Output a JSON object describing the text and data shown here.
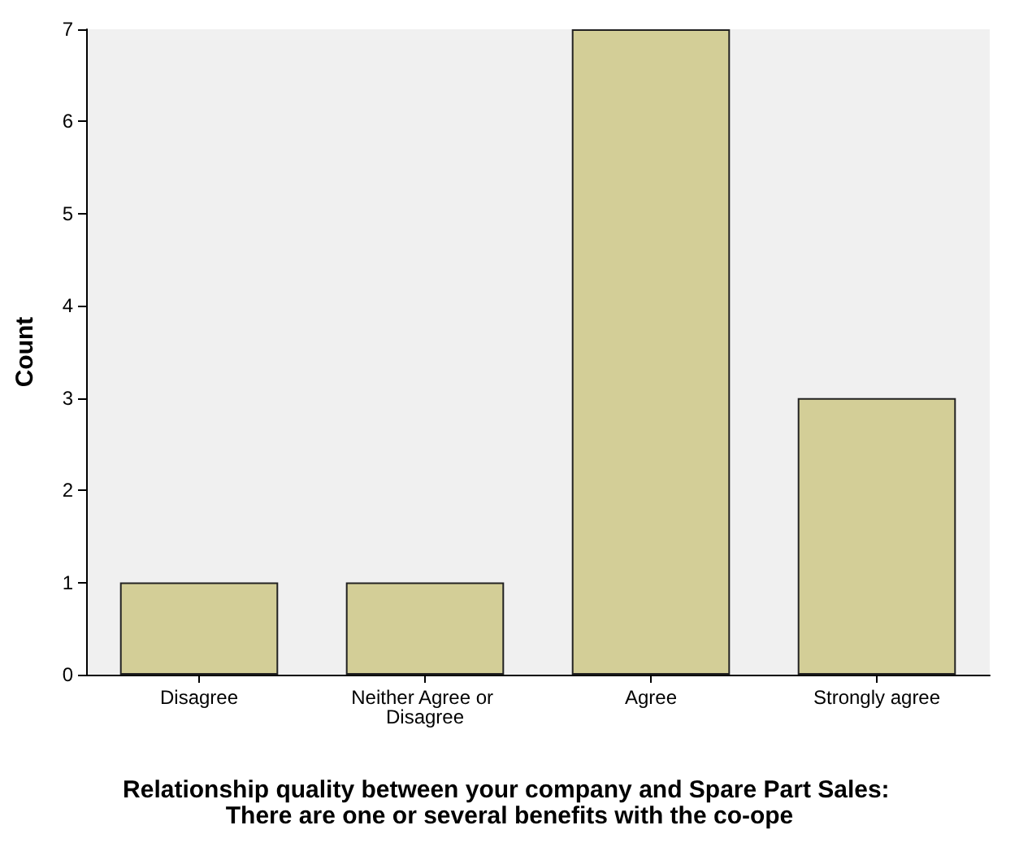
{
  "chart_data": {
    "type": "bar",
    "categories": [
      "Disagree",
      "Neither Agree or Disagree",
      "Agree",
      "Strongly agree"
    ],
    "values": [
      1,
      1,
      7,
      3
    ],
    "color": "#d3ce97",
    "ylim": [
      0,
      7
    ],
    "yticks": [
      0,
      1,
      2,
      3,
      4,
      5,
      6,
      7
    ],
    "ylabel": "Count",
    "xlabel": "Relationship quality between your company and Spare Part Sales: There are one or several benefits with the co-ope",
    "grid": false
  }
}
